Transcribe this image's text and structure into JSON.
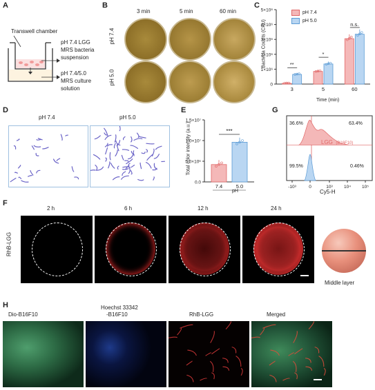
{
  "panel_letters": {
    "a": "A",
    "b": "B",
    "c": "C",
    "d": "D",
    "e": "E",
    "f": "F",
    "g": "G",
    "h": "H"
  },
  "panel_a": {
    "chamber": "Transwell chamber",
    "top_l1": "pH 7.4 LGG",
    "top_l2": "MRS bacteria",
    "top_l3": "suspension",
    "bot_l1": "pH 7.4/5.0",
    "bot_l2": "MRS culture",
    "bot_l3": "solution"
  },
  "panel_b": {
    "times": [
      "3 min",
      "5 min",
      "60 min"
    ],
    "rows": [
      "pH 7.4",
      "pH 5.0"
    ]
  },
  "panel_d": {
    "left": "pH 7.4",
    "right": "pH 5.0"
  },
  "panel_f": {
    "times": [
      "2 h",
      "6 h",
      "12 h",
      "24 h"
    ],
    "row": "RhB-LGG",
    "sphere_caption": "Middle layer"
  },
  "panel_h": {
    "labels_1": "Dio-B16F10",
    "labels_2a": "Hoechst 33342",
    "labels_2b": "-B16F10",
    "labels_3": "RhB-LGG",
    "labels_4": "Merged"
  },
  "colors": {
    "ph74": "#f4b8b8",
    "ph50": "#b9d6f2",
    "line74": "#e06666",
    "line50": "#5b9bd5"
  },
  "chart_data": [
    {
      "type": "bar",
      "panel": "C",
      "categories": [
        "3",
        "5",
        "60"
      ],
      "series": [
        {
          "name": "pH 7.4",
          "values": [
            0.05,
            0.85,
            3.05
          ]
        },
        {
          "name": "pH 5.0",
          "values": [
            0.65,
            1.35,
            3.35
          ]
        }
      ],
      "ylabel": "Bacteria Counts (CFU)",
      "xlabel": "Time (min)",
      "ylim": [
        0,
        5
      ],
      "ytick_labels": [
        "0",
        "1×10⁶",
        "2×10⁶",
        "3×10⁶",
        "4×10⁶",
        "5×10⁶"
      ],
      "significance": [
        "**",
        "*",
        "n.s."
      ],
      "legend": "top-left"
    },
    {
      "type": "bar",
      "panel": "E",
      "categories": [
        "7.4",
        "5.0"
      ],
      "values": [
        4.2,
        9.6
      ],
      "ylabel": "Total color intensity (a.u.)",
      "xlabel": "pH",
      "ylim": [
        0,
        15
      ],
      "ytick_labels": [
        "0.0",
        "5.0×10⁶",
        "1.0×10⁷",
        "1.5×10⁷"
      ],
      "significance": "***"
    },
    {
      "type": "scatter",
      "panel": "G",
      "xlabel": "Cy5-H",
      "xtick_labels": [
        "-10³",
        "0",
        "10³",
        "10⁴",
        "10⁵"
      ],
      "quadrants": {
        "ul": "36.6%",
        "ur": "63.4%",
        "ll": "99.5%",
        "lr": "0.46%"
      },
      "series_label": "LGG",
      "series_label2": "(B16F10)"
    }
  ]
}
